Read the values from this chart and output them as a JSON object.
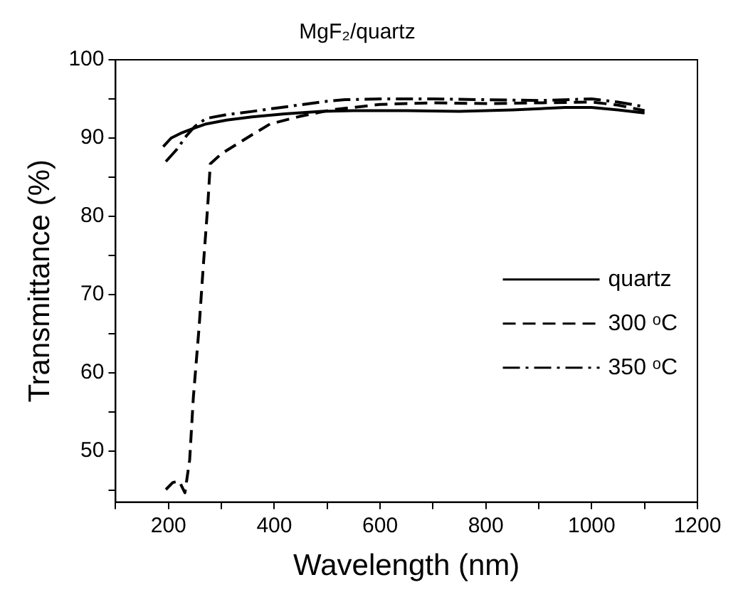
{
  "chart_data": {
    "type": "line",
    "title": "MgF₂/quartz",
    "xlabel": "Wavelength (nm)",
    "ylabel": "Transmittance (%)",
    "xlim": [
      100,
      1200
    ],
    "xticks": [
      {
        "value": 100,
        "label": null
      },
      200,
      {
        "value": 300,
        "label": null
      },
      400,
      {
        "value": 500,
        "label": null
      },
      600,
      {
        "value": 700,
        "label": null
      },
      800,
      {
        "value": 900,
        "label": null
      },
      1000,
      {
        "value": 1100,
        "label": null
      },
      1200
    ],
    "ylim": [
      43.5,
      100
    ],
    "yticks": [
      {
        "value": 45,
        "label": null
      },
      50,
      {
        "value": 55,
        "label": null
      },
      60,
      {
        "value": 65,
        "label": null
      },
      70,
      {
        "value": 75,
        "label": null
      },
      80,
      {
        "value": 85,
        "label": null
      },
      90,
      {
        "value": 95,
        "label": null
      },
      100
    ],
    "grid": false,
    "legend": "right",
    "marker": "none",
    "series": [
      {
        "name": "quartz",
        "color": "#000000",
        "line_style": "solid",
        "x": [
          190,
          205,
          226,
          250,
          271,
          310,
          358,
          420,
          489,
          550,
          650,
          750,
          850,
          950,
          1000,
          1050,
          1100
        ],
        "values": [
          88.9,
          90.0,
          90.7,
          91.3,
          91.8,
          92.3,
          92.7,
          93.1,
          93.4,
          93.5,
          93.5,
          93.4,
          93.6,
          93.9,
          93.9,
          93.6,
          93.2
        ]
      },
      {
        "name": "300 ᵒC",
        "color": "#000000",
        "line_style": "dashed",
        "x": [
          195,
          208,
          220,
          231,
          240,
          247,
          258,
          266,
          274,
          279,
          300,
          324,
          360,
          392,
          450,
          508,
          600,
          700,
          800,
          900,
          1000,
          1050,
          1100
        ],
        "values": [
          45.1,
          46.0,
          46.2,
          44.7,
          48.9,
          56.9,
          66.0,
          73.9,
          81.2,
          86.7,
          88.0,
          89.0,
          90.5,
          91.8,
          92.8,
          93.6,
          94.3,
          94.5,
          94.4,
          94.5,
          94.6,
          94.2,
          93.5
        ]
      },
      {
        "name": "350 ᵒC",
        "color": "#000000",
        "line_style": "dashdot",
        "x": [
          195,
          215,
          234,
          250,
          271,
          310,
          358,
          400,
          445,
          500,
          534,
          600,
          700,
          800,
          900,
          1000,
          1050,
          1100
        ],
        "values": [
          87.0,
          88.5,
          90.3,
          91.5,
          92.5,
          93.0,
          93.4,
          93.8,
          94.2,
          94.7,
          94.9,
          95.0,
          95.0,
          94.9,
          94.8,
          95.0,
          94.6,
          94.0
        ]
      }
    ]
  }
}
